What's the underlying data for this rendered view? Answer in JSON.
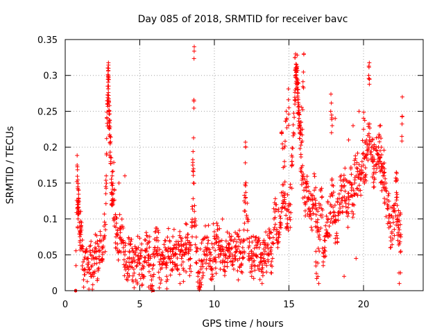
{
  "chart_data": {
    "type": "scatter",
    "title": "Day 085 of 2018, SRMTID for receiver bavc",
    "xlabel": "GPS time / hours",
    "ylabel": "SRMTID / TECUs",
    "xlim": [
      0,
      24
    ],
    "ylim": [
      0,
      0.35
    ],
    "xticks": [
      0,
      5,
      10,
      15,
      20
    ],
    "yticks": [
      0,
      0.05,
      0.1,
      0.15,
      0.2,
      0.25,
      0.3,
      0.35
    ],
    "xtick_labels": [
      "0",
      "5",
      "10",
      "15",
      "20"
    ],
    "ytick_labels": [
      "0",
      "0.05",
      "0.1",
      "0.15",
      "0.2",
      "0.25",
      "0.3",
      "0.35"
    ],
    "grid": true,
    "marker": "+",
    "color": "#ff0000",
    "series": [
      {
        "name": "SRMTID",
        "x": [
          0.7,
          0.8,
          0.85,
          0.9,
          0.95,
          1.0,
          1.05,
          1.1,
          1.2,
          1.3,
          1.4,
          1.5,
          1.6,
          1.7,
          1.8,
          1.9,
          2.0,
          2.1,
          2.2,
          2.3,
          2.4,
          2.5,
          2.6,
          2.7,
          2.75,
          2.8,
          2.85,
          2.9,
          2.95,
          3.0,
          3.05,
          3.1,
          3.2,
          3.3,
          3.4,
          3.5,
          3.6,
          3.7,
          3.8,
          3.9,
          4.0,
          4.1,
          4.2,
          4.3,
          4.4,
          4.5,
          4.6,
          4.7,
          4.8,
          4.9,
          5.0,
          5.1,
          5.2,
          5.3,
          5.4,
          5.5,
          5.6,
          5.7,
          5.8,
          5.9,
          6.0,
          6.1,
          6.2,
          6.3,
          6.4,
          6.5,
          6.6,
          6.7,
          6.8,
          6.9,
          7.0,
          7.1,
          7.2,
          7.3,
          7.4,
          7.5,
          7.6,
          7.7,
          7.8,
          7.9,
          8.0,
          8.1,
          8.2,
          8.3,
          8.4,
          8.5,
          8.6,
          8.7,
          8.8,
          8.9,
          9.0,
          9.1,
          9.2,
          9.3,
          9.4,
          9.5,
          9.6,
          9.7,
          9.8,
          9.9,
          10.0,
          10.1,
          10.2,
          10.3,
          10.4,
          10.5,
          10.6,
          10.7,
          10.8,
          10.9,
          11.0,
          11.1,
          11.2,
          11.3,
          11.4,
          11.5,
          11.6,
          11.7,
          11.8,
          11.9,
          12.0,
          12.1,
          12.2,
          12.3,
          12.4,
          12.5,
          12.6,
          12.7,
          12.8,
          12.9,
          13.0,
          13.1,
          13.2,
          13.3,
          13.4,
          13.5,
          13.6,
          13.7,
          13.8,
          13.9,
          14.0,
          14.1,
          14.2,
          14.3,
          14.4,
          14.5,
          14.6,
          14.7,
          14.8,
          14.9,
          15.0,
          15.1,
          15.2,
          15.3,
          15.4,
          15.5,
          15.6,
          15.7,
          15.8,
          15.9,
          16.0,
          16.1,
          16.2,
          16.3,
          16.4,
          16.5,
          16.6,
          16.7,
          16.8,
          16.9,
          17.0,
          17.1,
          17.2,
          17.3,
          17.4,
          17.5,
          17.6,
          17.7,
          17.8,
          17.9,
          18.0,
          18.1,
          18.2,
          18.3,
          18.4,
          18.5,
          18.6,
          18.7,
          18.8,
          18.9,
          19.0,
          19.1,
          19.2,
          19.3,
          19.4,
          19.5,
          19.6,
          19.7,
          19.8,
          19.9,
          20.0,
          20.1,
          20.2,
          20.3,
          20.4,
          20.5,
          20.6,
          20.7,
          20.8,
          20.9,
          21.0,
          21.1,
          21.2,
          21.3,
          21.4,
          21.5,
          21.6,
          21.7,
          21.8,
          21.9,
          22.0,
          22.1,
          22.2,
          22.3,
          22.4,
          22.5,
          22.6,
          2.85,
          2.88,
          2.92,
          2.95,
          3.0,
          8.55,
          8.6,
          8.65,
          15.4,
          15.45,
          15.5,
          15.55,
          15.6,
          15.65,
          15.7,
          15.8,
          15.9,
          16.0,
          20.35,
          20.4,
          20.6,
          20.7,
          0.82,
          0.86,
          0.9,
          3.1,
          3.15,
          3.3,
          3.6,
          4.0,
          12.0,
          12.1,
          14.5,
          14.7,
          14.85,
          15.0,
          17.8,
          17.9,
          18.1,
          19.0,
          19.3,
          19.7,
          20.0,
          20.2,
          21.0,
          21.2,
          21.4,
          22.2,
          22.4,
          4.5,
          5.6,
          6.8,
          7.2,
          7.7,
          9.9,
          10.4,
          11.6,
          12.5,
          13.2,
          13.8,
          16.8,
          17.0,
          17.3,
          18.7,
          19.5,
          21.8,
          22.3,
          22.5
        ],
        "y": [
          0.0,
          0.175,
          0.145,
          0.128,
          0.095,
          0.07,
          0.09,
          0.06,
          0.04,
          0.03,
          0.055,
          0.045,
          0.025,
          0.05,
          0.035,
          0.02,
          0.06,
          0.045,
          0.03,
          0.055,
          0.07,
          0.06,
          0.075,
          0.085,
          0.16,
          0.24,
          0.265,
          0.31,
          0.25,
          0.215,
          0.18,
          0.15,
          0.12,
          0.09,
          0.075,
          0.065,
          0.055,
          0.085,
          0.07,
          0.06,
          0.05,
          0.04,
          0.045,
          0.055,
          0.065,
          0.04,
          0.03,
          0.05,
          0.035,
          0.06,
          0.045,
          0.03,
          0.02,
          0.04,
          0.055,
          0.065,
          0.05,
          0.045,
          0.0,
          0.035,
          0.055,
          0.07,
          0.06,
          0.04,
          0.03,
          0.05,
          0.045,
          0.06,
          0.035,
          0.055,
          0.07,
          0.045,
          0.04,
          0.06,
          0.05,
          0.03,
          0.065,
          0.055,
          0.045,
          0.04,
          0.05,
          0.06,
          0.07,
          0.055,
          0.045,
          0.095,
          0.15,
          0.1,
          0.06,
          0.02,
          0.01,
          0.03,
          0.04,
          0.055,
          0.06,
          0.05,
          0.07,
          0.045,
          0.03,
          0.06,
          0.065,
          0.04,
          0.085,
          0.06,
          0.05,
          0.07,
          0.055,
          0.04,
          0.06,
          0.045,
          0.065,
          0.07,
          0.05,
          0.03,
          0.06,
          0.055,
          0.075,
          0.045,
          0.035,
          0.06,
          0.07,
          0.13,
          0.1,
          0.06,
          0.045,
          0.055,
          0.04,
          0.035,
          0.05,
          0.065,
          0.06,
          0.04,
          0.03,
          0.045,
          0.055,
          0.035,
          0.05,
          0.08,
          0.06,
          0.045,
          0.1,
          0.12,
          0.07,
          0.08,
          0.095,
          0.11,
          0.125,
          0.13,
          0.105,
          0.1,
          0.11,
          0.12,
          0.18,
          0.22,
          0.26,
          0.305,
          0.275,
          0.23,
          0.19,
          0.16,
          0.14,
          0.12,
          0.15,
          0.13,
          0.11,
          0.1,
          0.12,
          0.14,
          0.115,
          0.095,
          0.085,
          0.105,
          0.13,
          0.04,
          0.06,
          0.08,
          0.1,
          0.09,
          0.12,
          0.135,
          0.11,
          0.095,
          0.08,
          0.105,
          0.12,
          0.14,
          0.13,
          0.145,
          0.125,
          0.11,
          0.13,
          0.15,
          0.14,
          0.12,
          0.15,
          0.16,
          0.17,
          0.14,
          0.155,
          0.18,
          0.175,
          0.16,
          0.185,
          0.2,
          0.21,
          0.19,
          0.18,
          0.165,
          0.175,
          0.195,
          0.2,
          0.185,
          0.17,
          0.16,
          0.15,
          0.14,
          0.12,
          0.105,
          0.09,
          0.08,
          0.095,
          0.11,
          0.13,
          0.1,
          0.085,
          0.075,
          0.27,
          0.285,
          0.295,
          0.265,
          0.23,
          0.215,
          0.175,
          0.17,
          0.34,
          0.325,
          0.3,
          0.315,
          0.295,
          0.28,
          0.26,
          0.245,
          0.235,
          0.225,
          0.33,
          0.3,
          0.295,
          0.21,
          0.17,
          0.12,
          0.1,
          0.14,
          0.12,
          0.16,
          0.14,
          0.15,
          0.16,
          0.125,
          0.2,
          0.22,
          0.18,
          0.24,
          0.255,
          0.25,
          0.23,
          0.24,
          0.21,
          0.23,
          0.25,
          0.225,
          0.21,
          0.19,
          0.2,
          0.17,
          0.165,
          0.01,
          0.015,
          0.005,
          0.02,
          0.03,
          0.01,
          0.02,
          0.03,
          0.015,
          0.02,
          0.01,
          0.025,
          0.04,
          0.01,
          0.035,
          0.02,
          0.045,
          0.06,
          0.07,
          0.055
        ],
        "markers": [
          0,
          5.9
        ]
      }
    ]
  }
}
